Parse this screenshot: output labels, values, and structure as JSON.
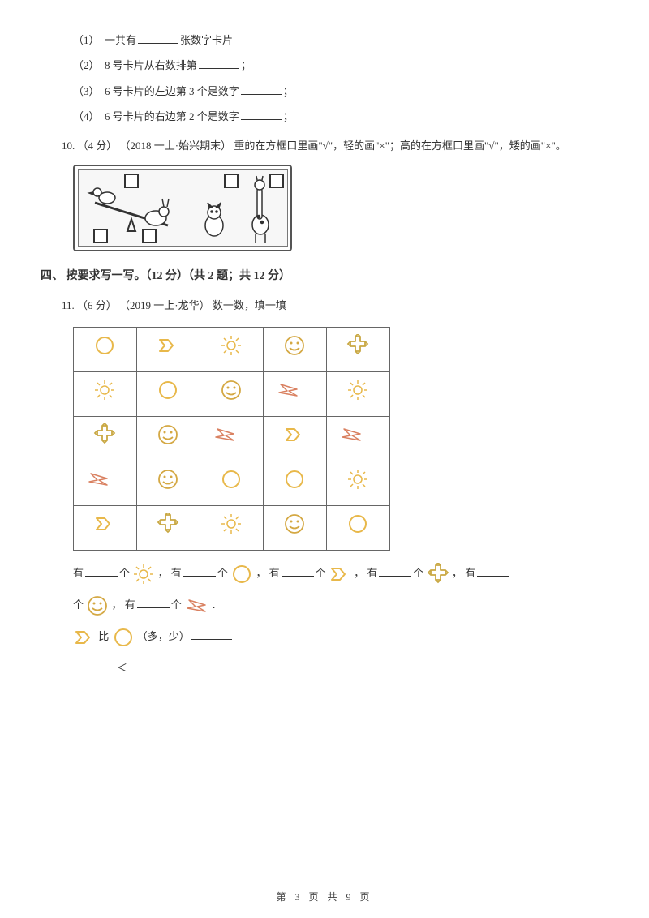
{
  "q9": {
    "sub1": {
      "label": "（1）",
      "text1": "一共有",
      "text2": "张数字卡片"
    },
    "sub2": {
      "label": "（2）",
      "text1": "8 号卡片从右数排第",
      "text2": "；"
    },
    "sub3": {
      "label": "（3）",
      "text1": "6 号卡片的左边第 3 个是数字",
      "text2": "；"
    },
    "sub4": {
      "label": "（4）",
      "text1": "6 号卡片的右边第 2 个是数字",
      "text2": "；"
    }
  },
  "q10": {
    "num": "10.",
    "points": "（4 分）",
    "source": "（2018 一上·始兴期末）",
    "text": "重的在方框口里画\"√\"，轻的画\"×\"；高的在方框口里画\"√\"，矮的画\"×\"。",
    "panel1": {
      "animal_left": "duck",
      "animal_right": "rabbit"
    },
    "panel2": {
      "animal_left": "cat",
      "animal_right": "giraffe"
    }
  },
  "section4": {
    "title": "四、 按要求写一写。（12 分）（共 2 题；共 12 分）"
  },
  "q11": {
    "num": "11.",
    "points": "（6 分）",
    "source": "（2019 一上·龙华）",
    "text": "数一数，填一填",
    "grid": [
      [
        "circle",
        "arrow",
        "sun",
        "smiley",
        "cross"
      ],
      [
        "sun",
        "circle",
        "smiley",
        "bolt",
        "sun"
      ],
      [
        "cross",
        "smiley",
        "bolt",
        "arrow",
        "bolt"
      ],
      [
        "bolt",
        "smiley",
        "circle",
        "circle",
        "sun"
      ],
      [
        "arrow",
        "cross",
        "sun",
        "smiley",
        "circle"
      ]
    ],
    "colors": {
      "circle": "#e8b84a",
      "arrow": "#e8b84a",
      "sun": "#e8b84a",
      "smiley": "#d4a843",
      "cross": "#c9a843",
      "bolt_stroke": "#d98060",
      "bolt_fill": "#ffffff"
    },
    "fill": {
      "you": "有",
      "ge": "个",
      "comma": "，",
      "period": "．",
      "bi": "比",
      "duoshao": "（多，少）",
      "lt": "＜"
    }
  },
  "footer": {
    "text": "第 3 页 共 9 页"
  }
}
